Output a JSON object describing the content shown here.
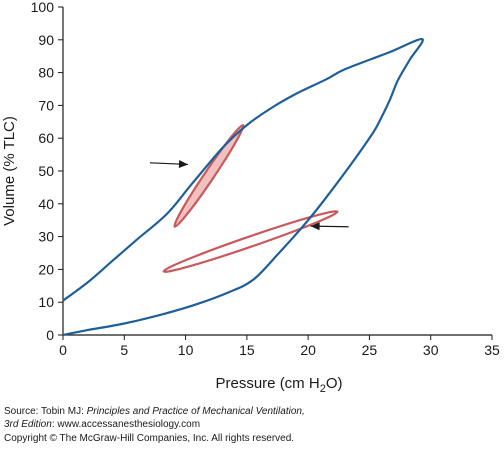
{
  "chart_data": {
    "type": "line",
    "xlabel": {
      "prefix": "Pressure (cm H",
      "sub": "2",
      "suffix": "O)"
    },
    "ylabel": "Volume (% TLC)",
    "xlim": [
      0,
      35
    ],
    "ylim": [
      0,
      100
    ],
    "xticks": [
      "0",
      "5",
      "10",
      "15",
      "20",
      "25",
      "30",
      "35"
    ],
    "yticks": [
      "0",
      "10",
      "20",
      "30",
      "40",
      "50",
      "60",
      "70",
      "80",
      "90",
      "100"
    ],
    "grid": false,
    "series": [
      {
        "line_color": "#1f5f99",
        "points": [
          [
            0,
            0
          ],
          [
            2,
            1.5
          ],
          [
            5,
            3.5
          ],
          [
            8,
            6.2
          ],
          [
            11,
            9.5
          ],
          [
            13.5,
            13
          ],
          [
            15.5,
            16.8
          ],
          [
            17.5,
            24.5
          ],
          [
            20,
            35
          ],
          [
            22.5,
            47
          ],
          [
            25,
            60
          ],
          [
            25.8,
            65
          ],
          [
            26.7,
            72
          ],
          [
            27.3,
            77.5
          ],
          [
            28.3,
            84
          ],
          [
            29.3,
            90.2
          ],
          [
            26.5,
            86
          ],
          [
            23,
            81
          ],
          [
            21.5,
            78
          ],
          [
            19,
            73.5
          ],
          [
            17,
            69.2
          ],
          [
            15,
            64
          ],
          [
            13,
            57
          ],
          [
            10.5,
            46
          ],
          [
            8.5,
            37
          ],
          [
            6,
            29
          ],
          [
            4,
            22.5
          ],
          [
            2,
            16
          ],
          [
            0,
            10.5
          ]
        ]
      }
    ],
    "ellipses": [
      {
        "filled": true,
        "cx": 11.9,
        "cy": 48.5,
        "rx": 5,
        "ry": 1.45,
        "angle_deg": 56,
        "stroke": "#c9595b",
        "fill": "#f1c1c1"
      },
      {
        "filled": false,
        "cx": 15.3,
        "cy": 28.5,
        "rx": 7.5,
        "ry": 1.55,
        "angle_deg": 19,
        "stroke": "#c9595b",
        "fill": "none"
      }
    ],
    "arrows": [
      {
        "from": [
          7.1,
          52.5
        ],
        "to": [
          10.2,
          52
        ]
      },
      {
        "from": [
          23.3,
          33
        ],
        "to": [
          20.2,
          33.2
        ]
      }
    ]
  },
  "footer": {
    "line1_prefix": "Source: Tobin MJ: ",
    "line1_italic": "Principles and Practice of Mechanical Ventilation,",
    "line2_italic": "3rd Edition",
    "line2_suffix": ": www.accessanesthesiology.com",
    "line3": "Copyright © The McGraw-Hill Companies, Inc. All rights reserved."
  }
}
